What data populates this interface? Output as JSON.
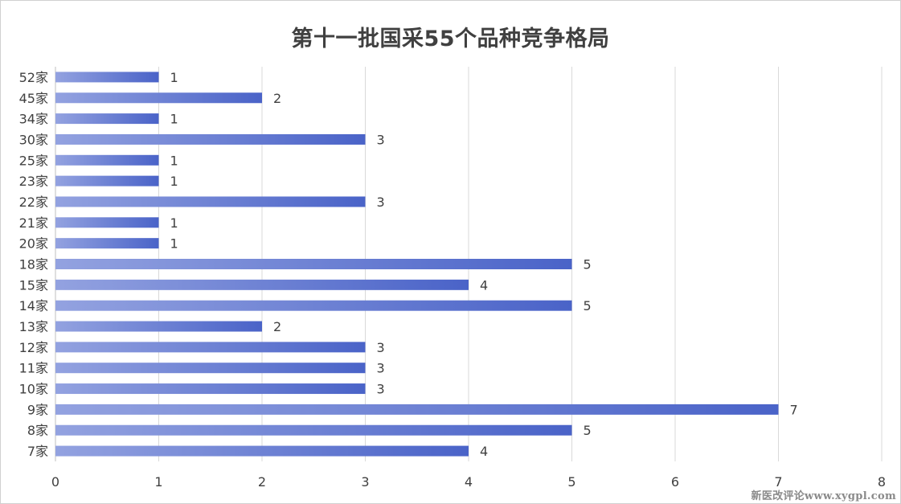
{
  "chart_data": {
    "type": "bar",
    "orientation": "horizontal",
    "title": "第十一批国采55个品种竞争格局",
    "categories": [
      "52家",
      "45家",
      "34家",
      "30家",
      "25家",
      "23家",
      "22家",
      "21家",
      "20家",
      "18家",
      "15家",
      "14家",
      "13家",
      "12家",
      "11家",
      "10家",
      "9家",
      "8家",
      "7家"
    ],
    "values": [
      1,
      2,
      1,
      3,
      1,
      1,
      3,
      1,
      1,
      5,
      4,
      5,
      2,
      3,
      3,
      3,
      7,
      5,
      4
    ],
    "xlim": [
      0,
      8
    ],
    "xticks": [
      0,
      1,
      2,
      3,
      4,
      5,
      6,
      7,
      8
    ],
    "grid": true,
    "data_labels": true,
    "bar_color_start": "#93a2e0",
    "bar_color_end": "#4a63c8"
  },
  "watermark": "新医改评论www.xygpl.com"
}
